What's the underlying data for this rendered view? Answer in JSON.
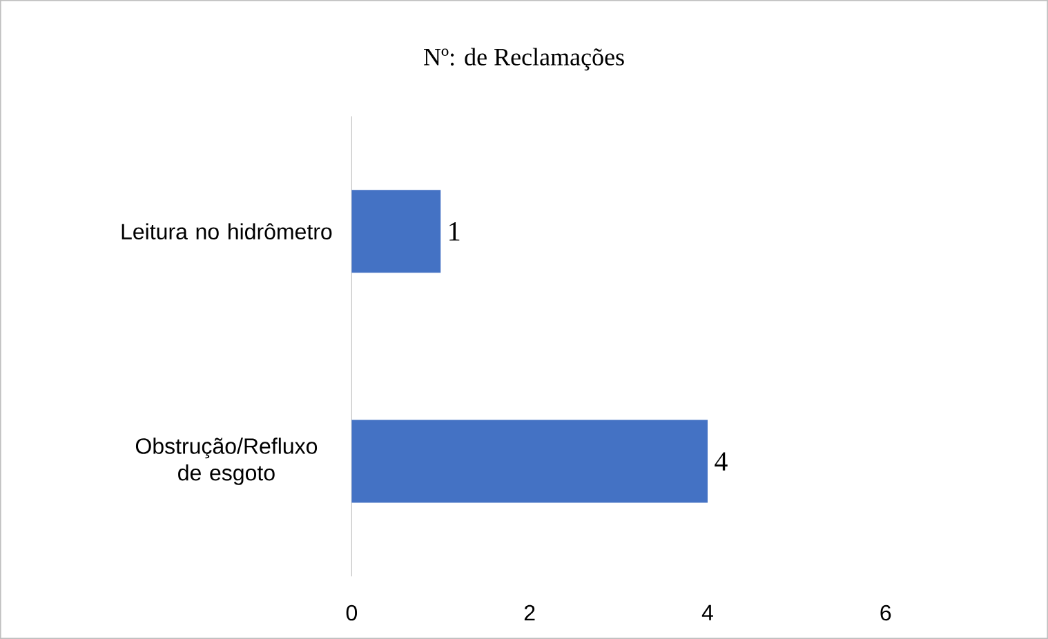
{
  "chart_data": {
    "type": "bar",
    "orientation": "horizontal",
    "title": "Nº: de Reclamações",
    "categories": [
      "Leitura no hidrômetro",
      "Obstrução/Refluxo de esgoto"
    ],
    "values": [
      1,
      4
    ],
    "color": "#4472c4",
    "data_labels": true,
    "xlim": [
      0,
      6
    ],
    "xticks": [
      0,
      2,
      4,
      6
    ],
    "grid": false
  }
}
